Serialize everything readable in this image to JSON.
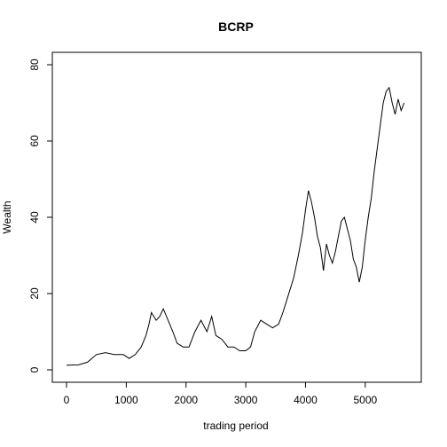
{
  "chart_data": {
    "type": "line",
    "title": "BCRP",
    "xlabel": "trading period",
    "ylabel": "Wealth",
    "xlim": [
      0,
      5700
    ],
    "ylim": [
      0,
      80
    ],
    "x_ticks": [
      0,
      1000,
      2000,
      3000,
      4000,
      5000
    ],
    "y_ticks": [
      0,
      20,
      40,
      60,
      80
    ],
    "x_tick_labels": [
      "0",
      "1000",
      "2000",
      "3000",
      "4000",
      "5000"
    ],
    "y_tick_labels": [
      "0",
      "20",
      "40",
      "60",
      "80"
    ],
    "grid": false,
    "legend": "none",
    "line_color": "#000000",
    "series": [
      {
        "x": [
          0,
          200,
          350,
          500,
          650,
          800,
          950,
          1050,
          1150,
          1250,
          1330,
          1380,
          1420,
          1500,
          1560,
          1620,
          1700,
          1780,
          1850,
          1950,
          2050,
          2150,
          2250,
          2350,
          2430,
          2500,
          2600,
          2700,
          2800,
          2900,
          3000,
          3080,
          3150,
          3250,
          3350,
          3450,
          3550,
          3620,
          3700,
          3800,
          3880,
          3950,
          4000,
          4050,
          4100,
          4150,
          4200,
          4250,
          4300,
          4350,
          4400,
          4450,
          4500,
          4550,
          4600,
          4650,
          4700,
          4750,
          4800,
          4850,
          4900,
          4950,
          5000,
          5050,
          5100,
          5150,
          5200,
          5250,
          5300,
          5350,
          5400,
          5450,
          5500,
          5550,
          5600,
          5650
        ],
        "y": [
          1.2,
          1.3,
          2,
          4,
          4.5,
          4,
          4,
          3,
          4,
          6,
          9,
          12,
          15,
          13,
          14,
          16,
          13,
          10,
          7,
          6,
          6,
          10,
          13,
          10,
          14,
          9,
          8,
          6,
          6,
          5,
          5,
          6,
          10,
          13,
          12,
          11,
          12,
          15,
          19,
          24,
          30,
          36,
          42,
          47,
          44,
          40,
          35,
          32,
          26,
          33,
          30,
          28,
          31,
          35,
          39,
          40,
          37,
          34,
          29,
          27,
          23,
          27,
          34,
          40,
          45,
          52,
          58,
          64,
          70,
          73,
          74,
          70,
          67,
          71,
          68,
          70
        ]
      }
    ]
  }
}
